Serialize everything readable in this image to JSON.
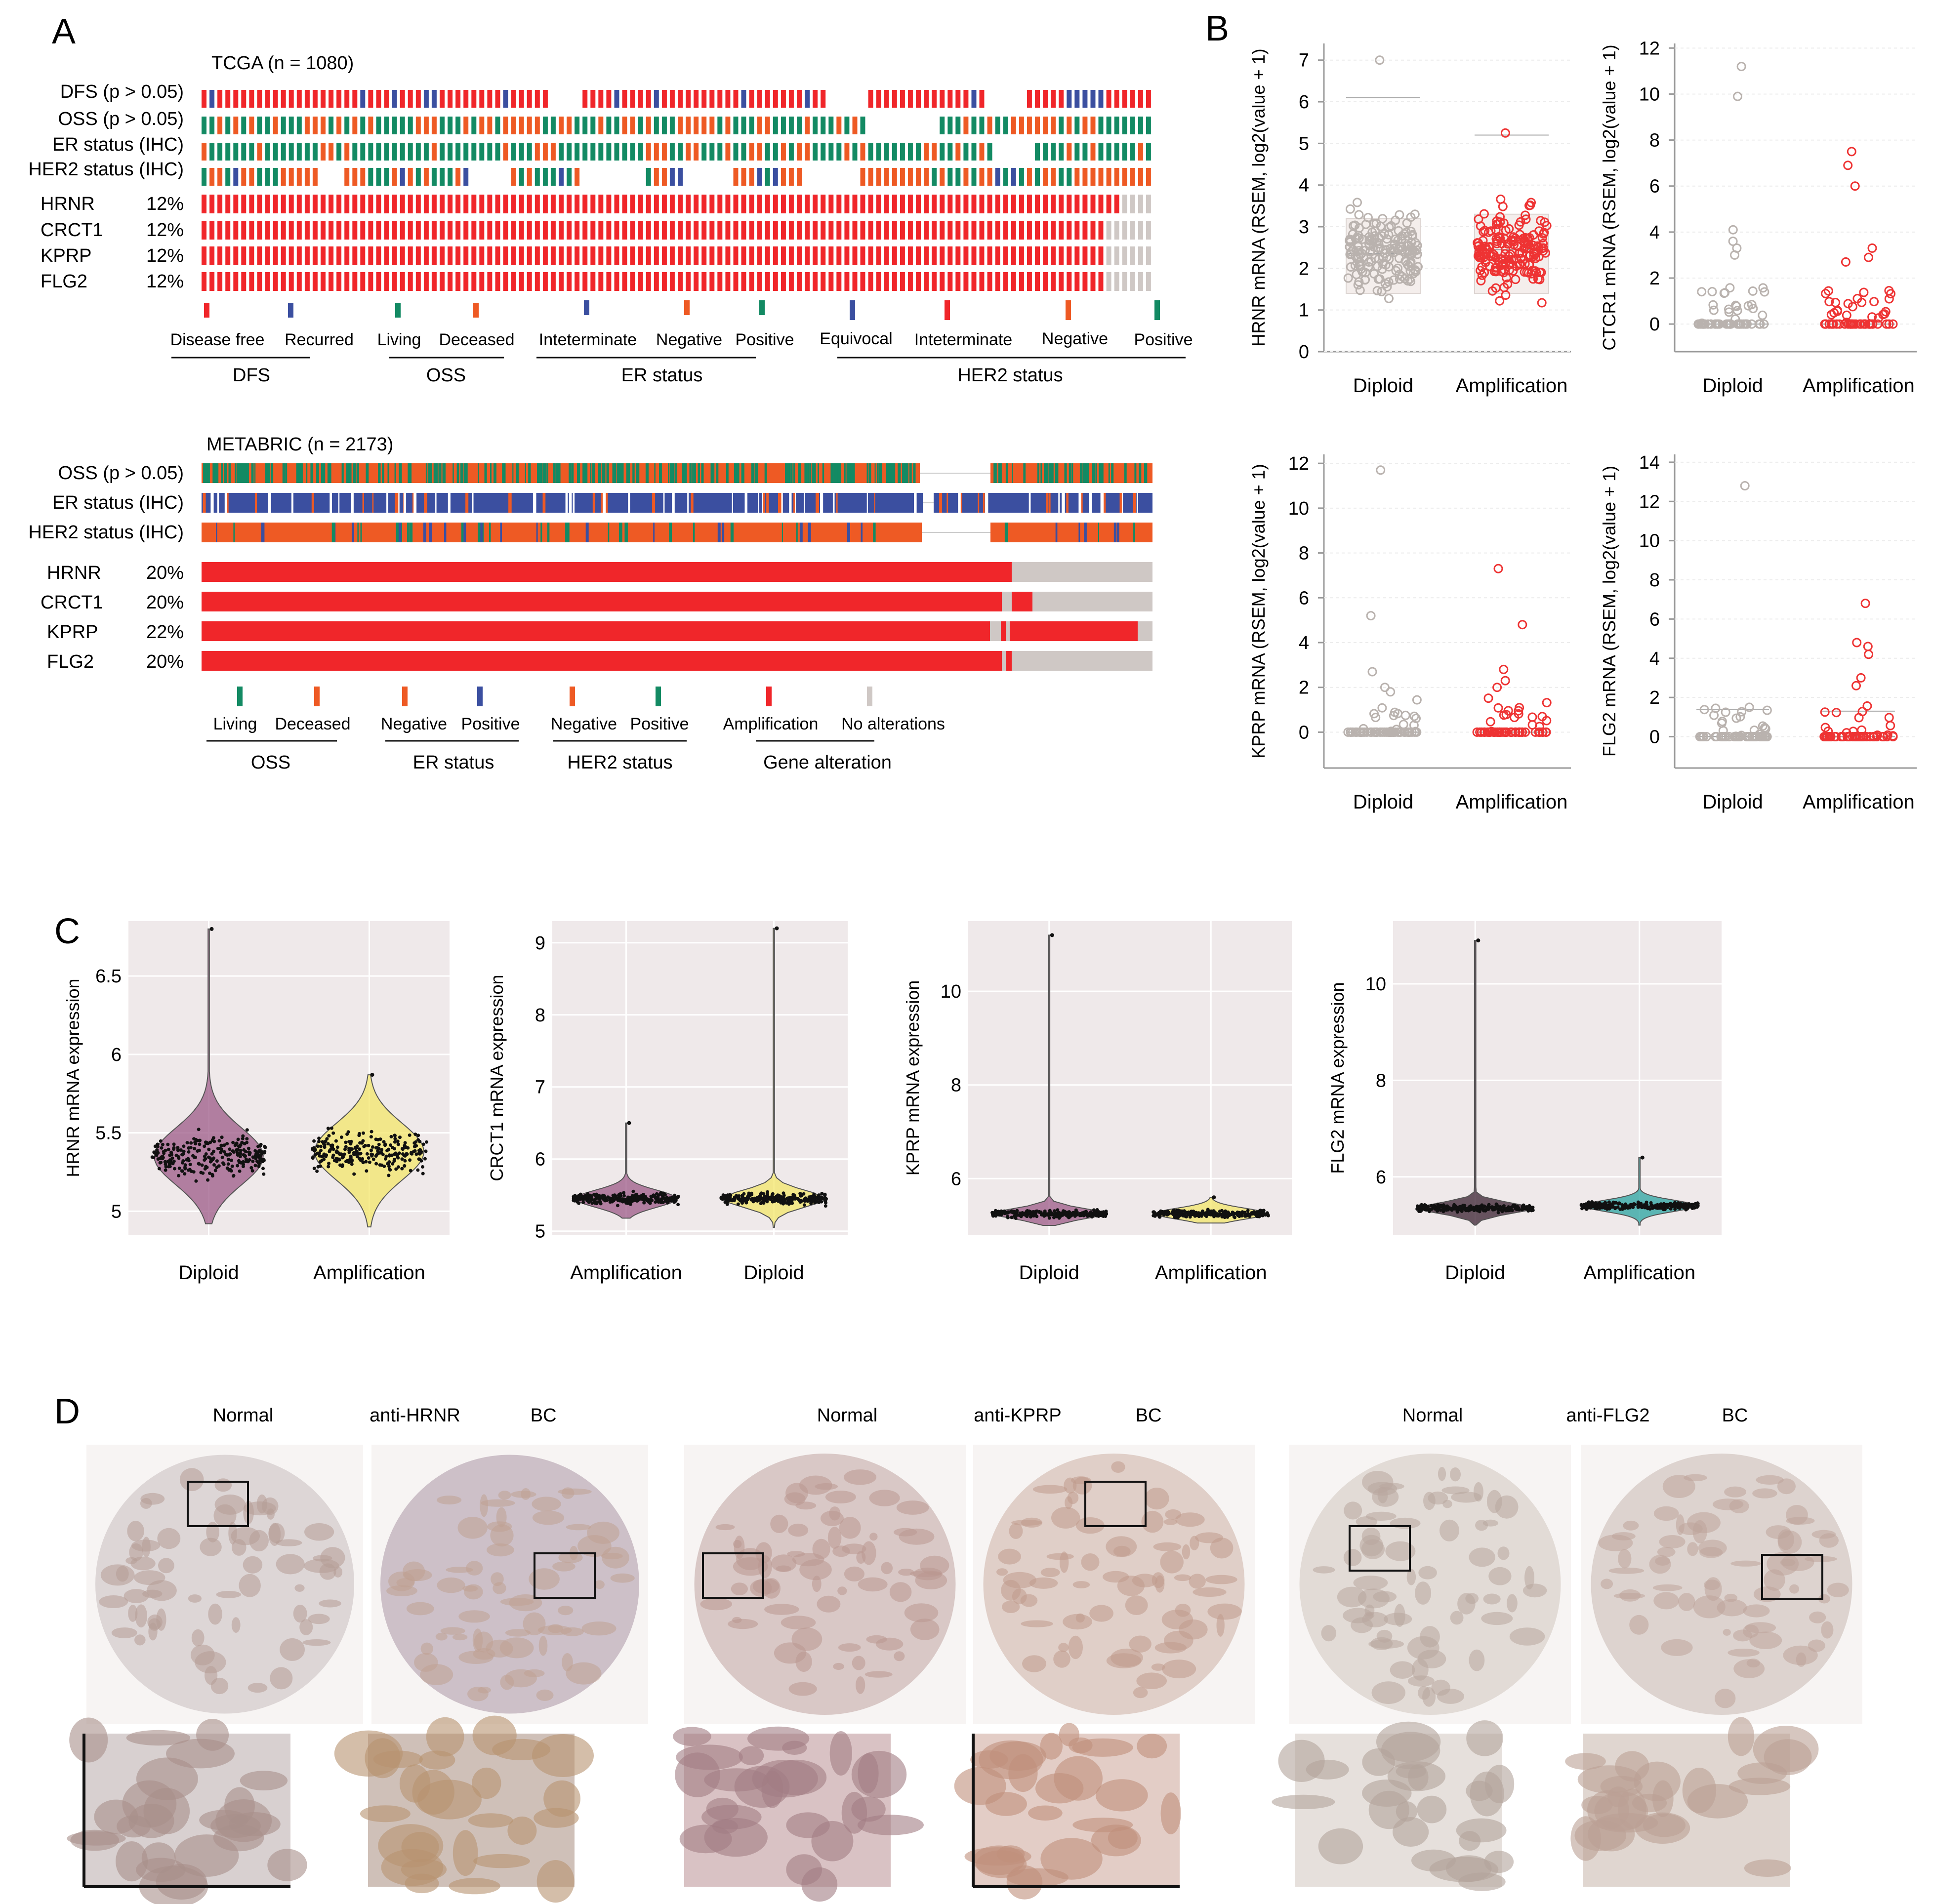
{
  "panels": {
    "a": "A",
    "b": "B",
    "c": "C",
    "d": "D"
  },
  "colors": {
    "red": "#f0262a",
    "orange": "#ee5a24",
    "green": "#138a63",
    "blue": "#3b4fa0",
    "gray": "#cfc8c5",
    "light_red_circle": "#ee3333",
    "gray_circle": "#b9b2ae",
    "violin_purple": "#9c5a87",
    "violin_yellow": "#f3e56a",
    "violin_teal": "#2aa3a0",
    "ggplot_bg": "#efe9ea",
    "tissue": "#c9a59c"
  },
  "panel_a": {
    "tcga": {
      "title": "TCGA (n = 1080)",
      "clinical_tracks": [
        {
          "label": "DFS (p > 0.05)"
        },
        {
          "label": "OSS (p > 0.05)"
        },
        {
          "label": "ER status (IHC)"
        },
        {
          "label": "HER2 status (IHC)"
        }
      ],
      "genes": [
        {
          "name": "HRNR",
          "pct": "12%"
        },
        {
          "name": "CRCT1",
          "pct": "12%"
        },
        {
          "name": "KPRP",
          "pct": "12%"
        },
        {
          "name": "FLG2",
          "pct": "12%"
        }
      ],
      "legend_items": [
        {
          "label": "Disease free",
          "color": "#f0262a"
        },
        {
          "label": "Recurred",
          "color": "#3b4fa0"
        },
        {
          "label": "Living",
          "color": "#138a63"
        },
        {
          "label": "Deceased",
          "color": "#ee5a24"
        },
        {
          "label": "Inteterminate",
          "color": "#3b4fa0"
        },
        {
          "label": "Negative",
          "color": "#ee5a24"
        },
        {
          "label": "Positive",
          "color": "#138a63"
        },
        {
          "label": "Equivocal",
          "color": "#3b4fa0"
        },
        {
          "label": "Inteterminate",
          "color": "#f0262a"
        },
        {
          "label": "Negative",
          "color": "#ee5a24"
        },
        {
          "label": "Positive",
          "color": "#138a63"
        }
      ],
      "legend_groups": [
        "DFS",
        "OSS",
        "ER status",
        "HER2 status"
      ]
    },
    "metabric": {
      "title": "METABRIC (n = 2173)",
      "clinical_tracks": [
        {
          "label": "OSS (p > 0.05)"
        },
        {
          "label": "ER status (IHC)"
        },
        {
          "label": "HER2 status (IHC)"
        }
      ],
      "genes": [
        {
          "name": "HRNR",
          "pct": "20%"
        },
        {
          "name": "CRCT1",
          "pct": "20%"
        },
        {
          "name": "KPRP",
          "pct": "22%"
        },
        {
          "name": "FLG2",
          "pct": "20%"
        }
      ],
      "legend_items": [
        {
          "label": "Living",
          "color": "#138a63"
        },
        {
          "label": "Deceased",
          "color": "#ee5a24"
        },
        {
          "label": "Negative",
          "color": "#ee5a24"
        },
        {
          "label": "Positive",
          "color": "#3b4fa0"
        },
        {
          "label": "Negative",
          "color": "#ee5a24"
        },
        {
          "label": "Positive",
          "color": "#138a63"
        },
        {
          "label": "Amplification",
          "color": "#f0262a"
        },
        {
          "label": "No alterations",
          "color": "#cfc8c5"
        }
      ],
      "legend_groups": [
        "OSS",
        "ER status",
        "HER2 status",
        "Gene alteration"
      ]
    }
  },
  "chart_data": [
    {
      "id": "B1",
      "type": "scatter",
      "ylabel": "HRNR mRNA (RSEM, log2(value + 1)",
      "categories": [
        "Diploid",
        "Amplification"
      ],
      "ylim": [
        0,
        7.4
      ],
      "yticks": [
        "0",
        "1",
        "2",
        "3",
        "4",
        "5",
        "6",
        "7"
      ],
      "ytick_values": [
        0,
        1,
        2,
        3,
        4,
        5,
        6,
        7
      ],
      "series": [
        {
          "name": "Diploid",
          "median": 2.35,
          "q1": 1.4,
          "q3": 3.2,
          "whisker_low": 0,
          "whisker_high": 6.1,
          "max": 7.0
        },
        {
          "name": "Amplification",
          "median": 2.45,
          "q1": 1.4,
          "q3": 3.3,
          "whisker_low": 0,
          "whisker_high": 5.2,
          "max": 5.25
        }
      ]
    },
    {
      "id": "B2",
      "type": "scatter",
      "ylabel": "CTCR1 mRNA (RSEM, log2(value + 1)",
      "categories": [
        "Diploid",
        "Amplification"
      ],
      "ylim": [
        -1.2,
        12.2
      ],
      "yticks": [
        "0",
        "2",
        "4",
        "6",
        "8",
        "10",
        "12"
      ],
      "ytick_values": [
        0,
        2,
        4,
        6,
        8,
        10,
        12
      ],
      "series": [
        {
          "name": "Diploid",
          "median": 0,
          "max": 11.2,
          "outliers": [
            11.2,
            9.9,
            4.1,
            3.6,
            3.3,
            3.0
          ]
        },
        {
          "name": "Amplification",
          "median": 0,
          "max": 7.5,
          "outliers": [
            7.5,
            6.9,
            6.0,
            3.3,
            2.9,
            2.7
          ]
        }
      ]
    },
    {
      "id": "B3",
      "type": "scatter",
      "ylabel": "KPRP mRNA (RSEM, log2(value + 1)",
      "categories": [
        "Diploid",
        "Amplification"
      ],
      "ylim": [
        -1.6,
        12.4
      ],
      "yticks": [
        "0",
        "2",
        "4",
        "6",
        "8",
        "10",
        "12"
      ],
      "ytick_values": [
        0,
        2,
        4,
        6,
        8,
        10,
        12
      ],
      "series": [
        {
          "name": "Diploid",
          "median": 0,
          "max": 11.7,
          "outliers": [
            11.7,
            5.2,
            2.7,
            2.0,
            1.8
          ]
        },
        {
          "name": "Amplification",
          "median": 0,
          "max": 7.3,
          "outliers": [
            7.3,
            4.8,
            2.8,
            2.3,
            2.0
          ]
        }
      ]
    },
    {
      "id": "B4",
      "type": "scatter",
      "ylabel": "FLG2 mRNA (RSEM, log2(value + 1)",
      "categories": [
        "Diploid",
        "Amplification"
      ],
      "ylim": [
        -1.6,
        14.4
      ],
      "yticks": [
        "0",
        "2",
        "4",
        "6",
        "8",
        "10",
        "12",
        "14"
      ],
      "ytick_values": [
        0,
        2,
        4,
        6,
        8,
        10,
        12,
        14
      ],
      "series": [
        {
          "name": "Diploid",
          "median": 0,
          "q3": 1.4,
          "max": 12.8,
          "outliers": [
            12.8
          ]
        },
        {
          "name": "Amplification",
          "median": 0,
          "q3": 1.3,
          "max": 6.8,
          "outliers": [
            6.8,
            4.8,
            4.6,
            4.2,
            3.0,
            2.6
          ]
        }
      ]
    },
    {
      "id": "C1",
      "type": "violin",
      "ylabel": "HRNR mRNA expression",
      "categories": [
        "Diploid",
        "Amplification"
      ],
      "ylim": [
        4.85,
        6.85
      ],
      "yticks": [
        "5",
        "5.5",
        "6",
        "6.5"
      ],
      "ytick_values": [
        5,
        5.5,
        6,
        6.5
      ],
      "series": [
        {
          "name": "Diploid",
          "center": 5.35,
          "min": 4.92,
          "max": 6.8,
          "color": "#9c5a87"
        },
        {
          "name": "Amplification",
          "center": 5.38,
          "min": 4.9,
          "max": 5.87,
          "color": "#f3e56a"
        }
      ]
    },
    {
      "id": "C2",
      "type": "violin",
      "ylabel": "CRCT1 mRNA expression",
      "categories": [
        "Amplification",
        "Diploid"
      ],
      "ylim": [
        4.95,
        9.3
      ],
      "yticks": [
        "5",
        "6",
        "7",
        "8",
        "9"
      ],
      "ytick_values": [
        5,
        6,
        7,
        8,
        9
      ],
      "series": [
        {
          "name": "Amplification",
          "center": 5.45,
          "min": 5.18,
          "max": 6.5,
          "color": "#9c5a87"
        },
        {
          "name": "Diploid",
          "center": 5.45,
          "min": 5.05,
          "max": 9.2,
          "color": "#f3e56a"
        }
      ]
    },
    {
      "id": "C3",
      "type": "violin",
      "ylabel": "KPRP mRNA expression",
      "categories": [
        "Diploid",
        "Amplification"
      ],
      "ylim": [
        4.8,
        11.5
      ],
      "yticks": [
        "6",
        "8",
        "10"
      ],
      "ytick_values": [
        6,
        8,
        10
      ],
      "series": [
        {
          "name": "Diploid",
          "center": 5.25,
          "min": 5.0,
          "max": 11.2,
          "color": "#9c5a87"
        },
        {
          "name": "Amplification",
          "center": 5.25,
          "min": 5.05,
          "max": 5.6,
          "color": "#f3e56a"
        }
      ]
    },
    {
      "id": "C4",
      "type": "violin",
      "ylabel": "FLG2 mRNA expression",
      "categories": [
        "Diploid",
        "Amplification"
      ],
      "ylim": [
        4.8,
        11.3
      ],
      "yticks": [
        "6",
        "8",
        "10"
      ],
      "ytick_values": [
        6,
        8,
        10
      ],
      "series": [
        {
          "name": "Diploid",
          "center": 5.35,
          "min": 5.0,
          "max": 10.9,
          "color": "#3a2030"
        },
        {
          "name": "Amplification",
          "center": 5.4,
          "min": 5.0,
          "max": 6.4,
          "color": "#2aa3a0"
        }
      ]
    }
  ],
  "panel_d": {
    "groups": [
      {
        "normal": "Normal",
        "antibody": "anti-HRNR",
        "tumor": "BC"
      },
      {
        "normal": "Normal",
        "antibody": "anti-KPRP",
        "tumor": "BC"
      },
      {
        "normal": "Normal",
        "antibody": "anti-FLG2",
        "tumor": "BC"
      }
    ]
  }
}
